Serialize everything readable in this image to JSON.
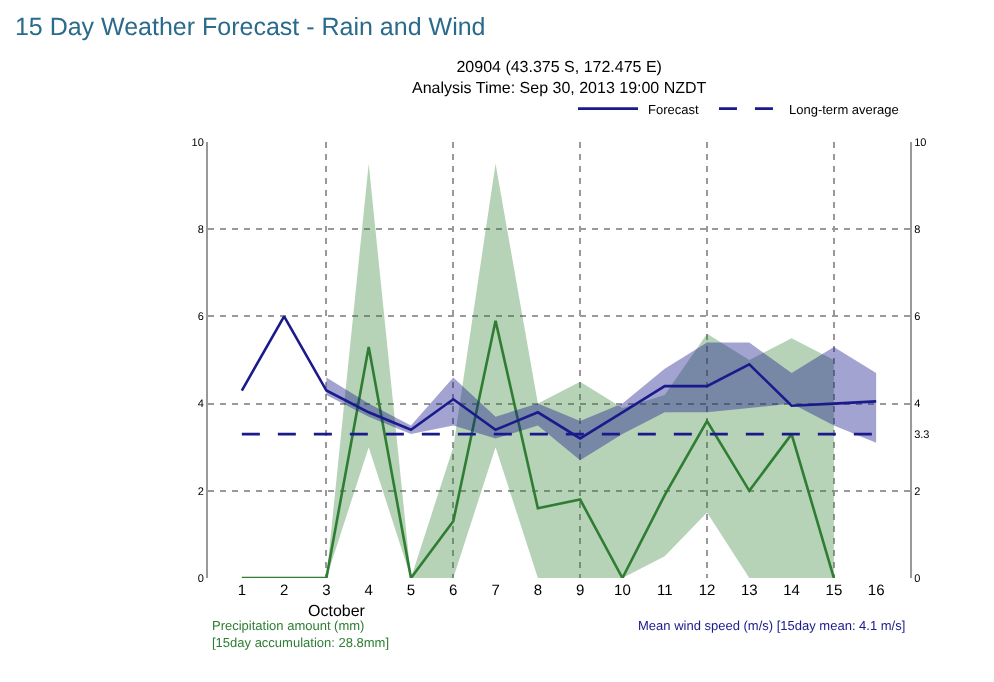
{
  "chart_data": {
    "type": "line",
    "title": "15 Day Weather Forecast - Rain and Wind",
    "subtitle": "20904 (43.375 S, 172.475 E)\nAnalysis Time: Sep 30, 2013 19:00 NZDT",
    "xlabel": "October",
    "annotations": [
      "Precipitation amount (mm)\n[15day accumulation: 28.8mm]",
      "Mean wind speed (m/s) [15day mean: 4.1 m/s]"
    ],
    "x": [
      1,
      2,
      3,
      4,
      5,
      6,
      7,
      8,
      9,
      10,
      11,
      12,
      13,
      14,
      15,
      16
    ],
    "series": [
      {
        "color": "#2e7d32",
        "values": [
          0,
          0,
          0,
          5.3,
          0,
          1.3,
          5.9,
          1.6,
          1.8,
          0,
          1.9,
          3.6,
          2.0,
          3.3,
          0,
          null
        ],
        "lower": [
          null,
          null,
          0,
          3.0,
          0,
          0,
          3.0,
          0,
          0,
          0,
          0.5,
          1.5,
          0,
          0,
          0,
          null
        ],
        "upper": [
          null,
          null,
          0,
          9.5,
          0,
          3.0,
          9.5,
          4.0,
          4.5,
          3.9,
          4.2,
          5.6,
          5.0,
          5.5,
          5.0,
          null
        ]
      },
      {
        "name": "Forecast",
        "color": "#1a1a8c",
        "axis": "y2",
        "values": [
          4.3,
          6.0,
          4.3,
          3.8,
          3.4,
          4.1,
          3.4,
          3.8,
          3.2,
          3.8,
          4.4,
          4.4,
          4.9,
          3.95,
          4.0,
          4.05
        ],
        "lower": [
          null,
          null,
          4.2,
          3.7,
          3.3,
          3.5,
          3.2,
          3.5,
          2.7,
          3.3,
          3.8,
          3.8,
          3.9,
          4.0,
          3.5,
          3.1
        ],
        "upper": [
          null,
          null,
          4.6,
          4.0,
          3.5,
          4.6,
          3.7,
          4.0,
          3.6,
          4.0,
          4.8,
          5.4,
          5.4,
          4.7,
          5.3,
          4.7
        ]
      },
      {
        "name": "Long-term average",
        "color": "#1a1a8c",
        "axis": "y2",
        "line_style": "dashed",
        "values": [
          3.3,
          3.3,
          3.3,
          3.3,
          3.3,
          3.3,
          3.3,
          3.3,
          3.3,
          3.3,
          3.3,
          3.3,
          3.3,
          3.3,
          3.3,
          3.3
        ]
      }
    ],
    "xlim": [
      0.2,
      16.8
    ],
    "xticks": [
      1,
      2,
      3,
      4,
      5,
      6,
      7,
      8,
      9,
      10,
      11,
      12,
      13,
      14,
      15,
      16
    ],
    "ylim": [
      0,
      10
    ],
    "yticks": [
      0,
      2,
      4,
      6,
      8,
      10
    ],
    "y2lim": [
      0,
      10
    ],
    "y2ticks": [
      0,
      2,
      {
        "value": 3.3,
        "label": "3.3"
      },
      4,
      6,
      8,
      10
    ],
    "grid": true,
    "legend": "top right",
    "marker": "none"
  }
}
